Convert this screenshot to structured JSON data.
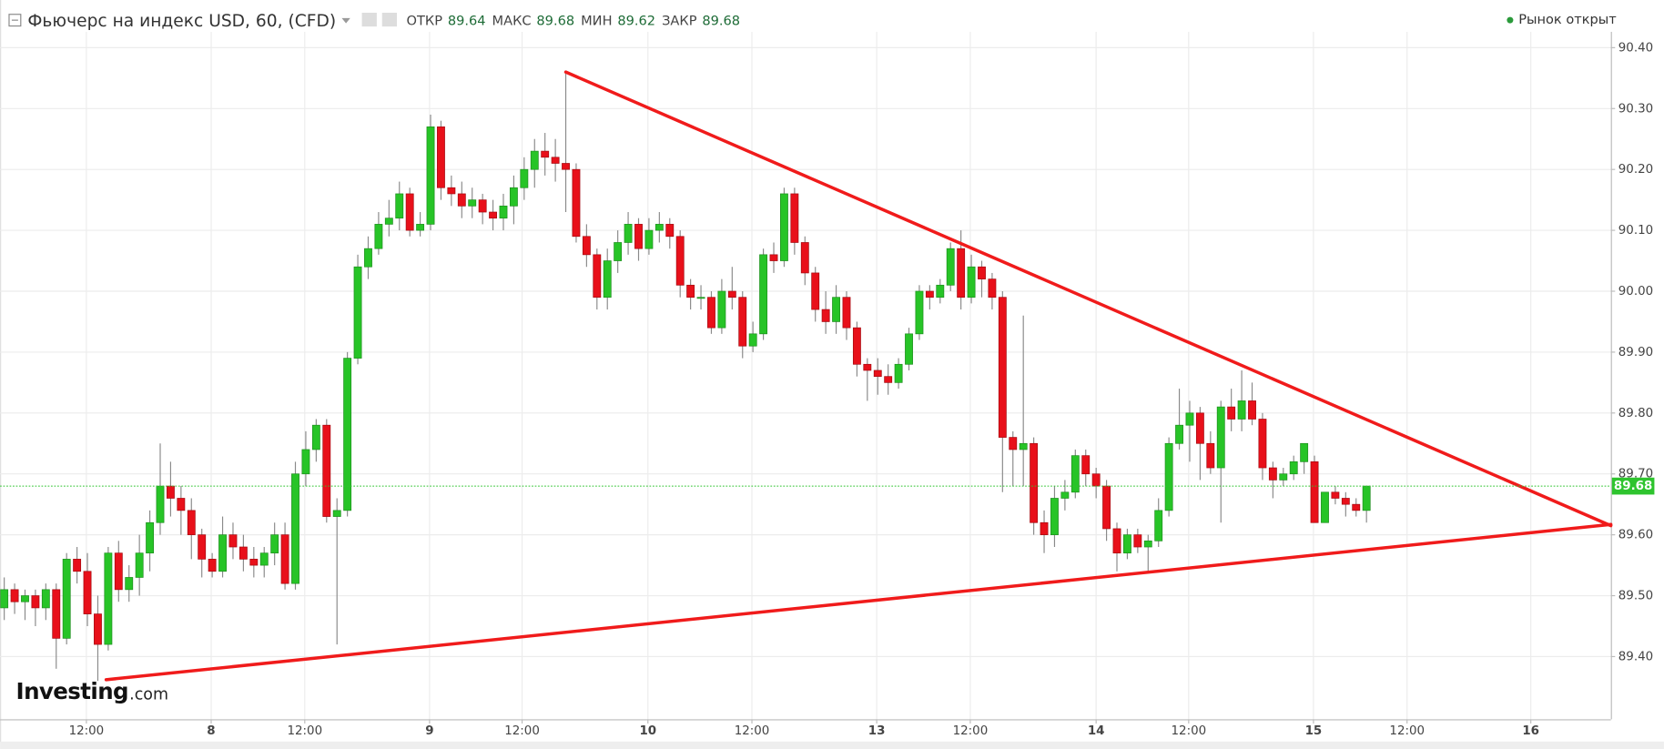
{
  "chart_data": {
    "type": "candlestick",
    "title": "Фьючерс на индекс USD, 60, (CFD)",
    "stats": [
      {
        "label": "ОТКР",
        "value": 89.64
      },
      {
        "label": "МАКС",
        "value": 89.68
      },
      {
        "label": "МИН",
        "value": 89.62
      },
      {
        "label": "ЗАКР",
        "value": 89.68
      }
    ],
    "status": "Рынок открыт",
    "watermark": [
      "Investing",
      ".com"
    ],
    "up_color": "#27c427",
    "down_color": "#e8101a",
    "last_price": 89.68,
    "last_price_color": "#2ec42e",
    "grid": true,
    "xlim": [
      -0.4,
      154.5
    ],
    "ylim": [
      89.297,
      90.426
    ],
    "xticks": [
      {
        "value": 7.9,
        "label": "12:00"
      },
      {
        "value": 19.9,
        "label": "8"
      },
      {
        "value": 28.9,
        "label": "12:00"
      },
      {
        "value": 40.9,
        "label": "9"
      },
      {
        "value": 49.8,
        "label": "12:00"
      },
      {
        "value": 61.9,
        "label": "10"
      },
      {
        "value": 71.9,
        "label": "12:00"
      },
      {
        "value": 83.9,
        "label": "13"
      },
      {
        "value": 92.9,
        "label": "12:00"
      },
      {
        "value": 105,
        "label": "14"
      },
      {
        "value": 113.9,
        "label": "12:00"
      },
      {
        "value": 125.9,
        "label": "15"
      },
      {
        "value": 134.9,
        "label": "12:00"
      },
      {
        "value": 146.8,
        "label": "16"
      }
    ],
    "yticks": [
      {
        "value": 89.4,
        "label": "89.40"
      },
      {
        "value": 89.5,
        "label": "89.50"
      },
      {
        "value": 89.6,
        "label": "89.60"
      },
      {
        "value": 89.7,
        "label": "89.70"
      },
      {
        "value": 89.8,
        "label": "89.80"
      },
      {
        "value": 89.9,
        "label": "89.90"
      },
      {
        "value": 90.0,
        "label": "90.00"
      },
      {
        "value": 90.1,
        "label": "90.10"
      },
      {
        "value": 90.2,
        "label": "90.20"
      },
      {
        "value": 90.3,
        "label": "90.30"
      },
      {
        "value": 90.4,
        "label": "90.40"
      }
    ],
    "trendlines": [
      {
        "color": "#f01b1b",
        "x": [
          54,
          154.5
        ],
        "y": [
          90.36,
          89.615
        ]
      },
      {
        "color": "#f01b1b",
        "x": [
          9.8,
          154.5
        ],
        "y": [
          89.362,
          89.617
        ]
      }
    ],
    "x": [
      0,
      1,
      2,
      3,
      4,
      5,
      6,
      7,
      8,
      9,
      10,
      11,
      12,
      13,
      14,
      15,
      16,
      17,
      18,
      19,
      20,
      21,
      22,
      23,
      24,
      25,
      26,
      27,
      28,
      29,
      30,
      31,
      32,
      33,
      34,
      35,
      36,
      37,
      38,
      39,
      40,
      41,
      42,
      43,
      44,
      45,
      46,
      47,
      48,
      49,
      50,
      51,
      52,
      53,
      54,
      55,
      56,
      57,
      58,
      59,
      60,
      61,
      62,
      63,
      64,
      65,
      66,
      67,
      68,
      69,
      70,
      71,
      72,
      73,
      74,
      75,
      76,
      77,
      78,
      79,
      80,
      81,
      82,
      83,
      84,
      85,
      86,
      87,
      88,
      89,
      90,
      91,
      92,
      93,
      94,
      95,
      96,
      97,
      98,
      99,
      100,
      101,
      102,
      103,
      104,
      105,
      106,
      107,
      108,
      109,
      110,
      111,
      112,
      113,
      114,
      115,
      116,
      117,
      118,
      119,
      120,
      121,
      122,
      123,
      124,
      125,
      126,
      127,
      128,
      129,
      130,
      131
    ],
    "ohlc": [
      [
        89.48,
        89.53,
        89.46,
        89.51
      ],
      [
        89.51,
        89.52,
        89.47,
        89.49
      ],
      [
        89.49,
        89.51,
        89.46,
        89.5
      ],
      [
        89.5,
        89.51,
        89.45,
        89.48
      ],
      [
        89.48,
        89.52,
        89.46,
        89.51
      ],
      [
        89.51,
        89.52,
        89.38,
        89.43
      ],
      [
        89.43,
        89.57,
        89.42,
        89.56
      ],
      [
        89.56,
        89.58,
        89.52,
        89.54
      ],
      [
        89.54,
        89.57,
        89.45,
        89.47
      ],
      [
        89.47,
        89.5,
        89.36,
        89.42
      ],
      [
        89.42,
        89.58,
        89.41,
        89.57
      ],
      [
        89.57,
        89.59,
        89.49,
        89.51
      ],
      [
        89.51,
        89.55,
        89.49,
        89.53
      ],
      [
        89.53,
        89.6,
        89.5,
        89.57
      ],
      [
        89.57,
        89.64,
        89.54,
        89.62
      ],
      [
        89.62,
        89.75,
        89.6,
        89.68
      ],
      [
        89.68,
        89.72,
        89.63,
        89.66
      ],
      [
        89.66,
        89.68,
        89.6,
        89.64
      ],
      [
        89.64,
        89.66,
        89.56,
        89.6
      ],
      [
        89.6,
        89.61,
        89.53,
        89.56
      ],
      [
        89.56,
        89.57,
        89.53,
        89.54
      ],
      [
        89.54,
        89.63,
        89.53,
        89.6
      ],
      [
        89.6,
        89.62,
        89.56,
        89.58
      ],
      [
        89.58,
        89.6,
        89.54,
        89.56
      ],
      [
        89.56,
        89.58,
        89.53,
        89.55
      ],
      [
        89.55,
        89.58,
        89.53,
        89.57
      ],
      [
        89.57,
        89.62,
        89.55,
        89.6
      ],
      [
        89.6,
        89.62,
        89.51,
        89.52
      ],
      [
        89.52,
        89.72,
        89.51,
        89.7
      ],
      [
        89.7,
        89.77,
        89.68,
        89.74
      ],
      [
        89.74,
        89.79,
        89.72,
        89.78
      ],
      [
        89.78,
        89.79,
        89.62,
        89.63
      ],
      [
        89.63,
        89.66,
        89.42,
        89.64
      ],
      [
        89.64,
        89.9,
        89.63,
        89.89
      ],
      [
        89.89,
        90.06,
        89.88,
        90.04
      ],
      [
        90.04,
        90.09,
        90.02,
        90.07
      ],
      [
        90.07,
        90.13,
        90.06,
        90.11
      ],
      [
        90.11,
        90.15,
        90.09,
        90.12
      ],
      [
        90.12,
        90.18,
        90.1,
        90.16
      ],
      [
        90.16,
        90.17,
        90.09,
        90.1
      ],
      [
        90.1,
        90.13,
        90.09,
        90.11
      ],
      [
        90.11,
        90.29,
        90.1,
        90.27
      ],
      [
        90.27,
        90.28,
        90.15,
        90.17
      ],
      [
        90.17,
        90.19,
        90.14,
        90.16
      ],
      [
        90.16,
        90.18,
        90.12,
        90.14
      ],
      [
        90.14,
        90.17,
        90.12,
        90.15
      ],
      [
        90.15,
        90.16,
        90.11,
        90.13
      ],
      [
        90.13,
        90.15,
        90.1,
        90.12
      ],
      [
        90.12,
        90.16,
        90.1,
        90.14
      ],
      [
        90.14,
        90.19,
        90.11,
        90.17
      ],
      [
        90.17,
        90.22,
        90.15,
        90.2
      ],
      [
        90.2,
        90.25,
        90.17,
        90.23
      ],
      [
        90.23,
        90.26,
        90.19,
        90.22
      ],
      [
        90.22,
        90.25,
        90.18,
        90.21
      ],
      [
        90.21,
        90.36,
        90.13,
        90.2
      ],
      [
        90.2,
        90.21,
        90.08,
        90.09
      ],
      [
        90.09,
        90.11,
        90.04,
        90.06
      ],
      [
        90.06,
        90.07,
        89.97,
        89.99
      ],
      [
        89.99,
        90.07,
        89.97,
        90.05
      ],
      [
        90.05,
        90.1,
        90.03,
        90.08
      ],
      [
        90.08,
        90.13,
        90.06,
        90.11
      ],
      [
        90.11,
        90.12,
        90.05,
        90.07
      ],
      [
        90.07,
        90.12,
        90.06,
        90.1
      ],
      [
        90.1,
        90.13,
        90.08,
        90.11
      ],
      [
        90.11,
        90.12,
        90.07,
        90.09
      ],
      [
        90.09,
        90.1,
        89.99,
        90.01
      ],
      [
        90.01,
        90.02,
        89.97,
        89.99
      ],
      [
        89.99,
        90.01,
        89.97,
        89.99
      ],
      [
        89.99,
        90.0,
        89.93,
        89.94
      ],
      [
        89.94,
        90.02,
        89.93,
        90.0
      ],
      [
        90.0,
        90.04,
        89.97,
        89.99
      ],
      [
        89.99,
        90.0,
        89.89,
        89.91
      ],
      [
        89.91,
        89.95,
        89.9,
        89.93
      ],
      [
        89.93,
        90.07,
        89.92,
        90.06
      ],
      [
        90.06,
        90.08,
        90.03,
        90.05
      ],
      [
        90.05,
        90.17,
        90.04,
        90.16
      ],
      [
        90.16,
        90.17,
        90.06,
        90.08
      ],
      [
        90.08,
        90.09,
        90.01,
        90.03
      ],
      [
        90.03,
        90.04,
        89.95,
        89.97
      ],
      [
        89.97,
        90.0,
        89.93,
        89.95
      ],
      [
        89.95,
        90.01,
        89.93,
        89.99
      ],
      [
        89.99,
        90.0,
        89.92,
        89.94
      ],
      [
        89.94,
        89.95,
        89.86,
        89.88
      ],
      [
        89.88,
        89.89,
        89.82,
        89.87
      ],
      [
        89.87,
        89.89,
        89.83,
        89.86
      ],
      [
        89.86,
        89.88,
        89.83,
        89.85
      ],
      [
        89.85,
        89.89,
        89.84,
        89.88
      ],
      [
        89.88,
        89.94,
        89.87,
        89.93
      ],
      [
        89.93,
        90.01,
        89.92,
        90.0
      ],
      [
        90.0,
        90.01,
        89.97,
        89.99
      ],
      [
        89.99,
        90.02,
        89.98,
        90.01
      ],
      [
        90.01,
        90.08,
        90.0,
        90.07
      ],
      [
        90.07,
        90.1,
        89.97,
        89.99
      ],
      [
        89.99,
        90.06,
        89.98,
        90.04
      ],
      [
        90.04,
        90.05,
        89.99,
        90.02
      ],
      [
        90.02,
        90.03,
        89.97,
        89.99
      ],
      [
        89.99,
        90.0,
        89.67,
        89.76
      ],
      [
        89.76,
        89.77,
        89.68,
        89.74
      ],
      [
        89.74,
        89.96,
        89.68,
        89.75
      ],
      [
        89.75,
        89.76,
        89.6,
        89.62
      ],
      [
        89.62,
        89.64,
        89.57,
        89.6
      ],
      [
        89.6,
        89.68,
        89.58,
        89.66
      ],
      [
        89.66,
        89.69,
        89.64,
        89.67
      ],
      [
        89.67,
        89.74,
        89.66,
        89.73
      ],
      [
        89.73,
        89.74,
        89.68,
        89.7
      ],
      [
        89.7,
        89.71,
        89.66,
        89.68
      ],
      [
        89.68,
        89.69,
        89.59,
        89.61
      ],
      [
        89.61,
        89.62,
        89.54,
        89.57
      ],
      [
        89.57,
        89.61,
        89.56,
        89.6
      ],
      [
        89.6,
        89.61,
        89.57,
        89.58
      ],
      [
        89.58,
        89.6,
        89.54,
        89.59
      ],
      [
        89.59,
        89.66,
        89.58,
        89.64
      ],
      [
        89.64,
        89.76,
        89.63,
        89.75
      ],
      [
        89.75,
        89.84,
        89.74,
        89.78
      ],
      [
        89.78,
        89.82,
        89.72,
        89.8
      ],
      [
        89.8,
        89.81,
        89.69,
        89.75
      ],
      [
        89.75,
        89.77,
        89.7,
        89.71
      ],
      [
        89.71,
        89.82,
        89.62,
        89.81
      ],
      [
        89.81,
        89.84,
        89.77,
        89.79
      ],
      [
        89.79,
        89.87,
        89.77,
        89.82
      ],
      [
        89.82,
        89.85,
        89.78,
        89.79
      ],
      [
        89.79,
        89.8,
        89.69,
        89.71
      ],
      [
        89.71,
        89.72,
        89.66,
        89.69
      ],
      [
        89.69,
        89.71,
        89.68,
        89.7
      ],
      [
        89.7,
        89.73,
        89.69,
        89.72
      ],
      [
        89.72,
        89.75,
        89.7,
        89.75
      ],
      [
        89.72,
        89.73,
        89.62,
        89.62
      ],
      [
        89.62,
        89.67,
        89.62,
        89.67
      ],
      [
        89.67,
        89.68,
        89.65,
        89.66
      ],
      [
        89.66,
        89.67,
        89.63,
        89.65
      ],
      [
        89.65,
        89.66,
        89.63,
        89.64
      ],
      [
        89.64,
        89.68,
        89.62,
        89.68
      ]
    ]
  }
}
